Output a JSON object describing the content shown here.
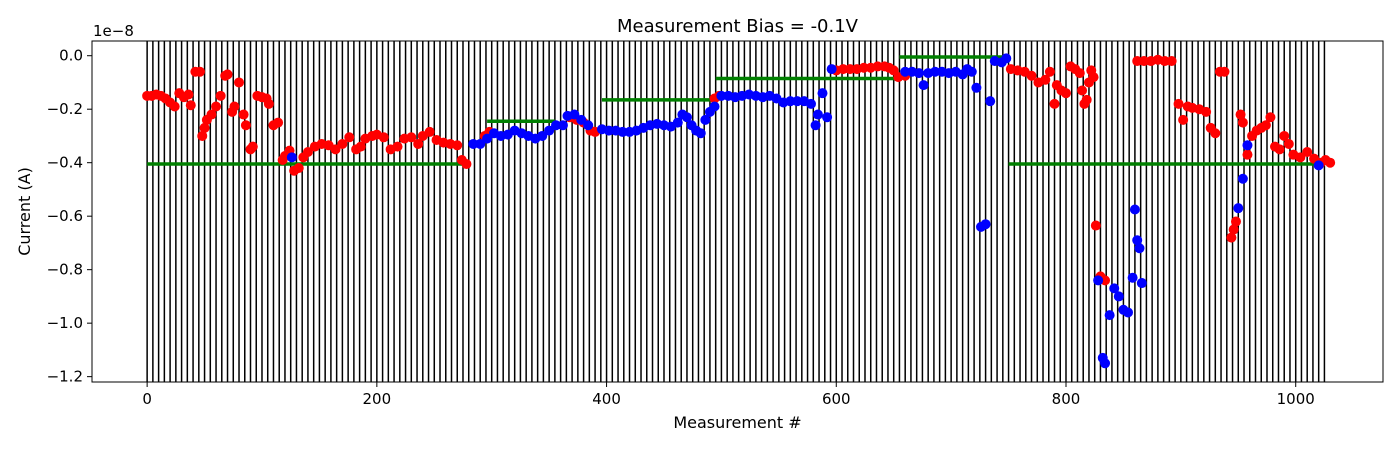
{
  "chart_data": {
    "type": "scatter",
    "title": "Measurement Bias = -0.1V",
    "xlabel": "Measurement #",
    "ylabel": "Current (A)",
    "y_offset_text": "1e−8",
    "xlim": [
      -48,
      1076
    ],
    "ylim": [
      -12.2,
      0.55
    ],
    "x_ticks": [
      0,
      200,
      400,
      600,
      800,
      1000
    ],
    "y_ticks": [
      0.0,
      -2.0,
      -4.0,
      -6.0,
      -8.0,
      -10.0,
      -12.0
    ],
    "x_tick_labels": [
      "0",
      "200",
      "400",
      "600",
      "800",
      "1000"
    ],
    "y_tick_labels": [
      "0.0",
      "−0.2",
      "−0.4",
      "−0.6",
      "−0.8",
      "−1.0",
      "−1.2"
    ],
    "vertical_lines": {
      "start": 0,
      "end": 1025,
      "step": 5,
      "color": "#000000"
    },
    "grid": false,
    "colors": {
      "red": "#ff0000",
      "blue": "#0000ff",
      "green": "#008000",
      "lines": "#000000"
    },
    "reference_segments": [
      {
        "x": [
          0,
          280
        ],
        "y": -4.05
      },
      {
        "x": [
          296,
          355
        ],
        "y": -2.45
      },
      {
        "x": [
          396,
          495
        ],
        "y": -1.65
      },
      {
        "x": [
          495,
          655
        ],
        "y": -0.85
      },
      {
        "x": [
          655,
          750
        ],
        "y": -0.05
      },
      {
        "x": [
          750,
          1025
        ],
        "y": -4.05
      }
    ],
    "series": [
      {
        "color": "red",
        "points": [
          [
            0,
            -1.5
          ],
          [
            4,
            -1.5
          ],
          [
            8,
            -1.45
          ],
          [
            12,
            -1.5
          ],
          [
            16,
            -1.6
          ],
          [
            20,
            -1.75
          ],
          [
            24,
            -1.9
          ],
          [
            28,
            -1.4
          ],
          [
            32,
            -1.55
          ],
          [
            36,
            -1.45
          ],
          [
            38,
            -1.85
          ],
          [
            42,
            -0.6
          ],
          [
            46,
            -0.6
          ],
          [
            48,
            -3.0
          ],
          [
            50,
            -2.7
          ],
          [
            52,
            -2.4
          ],
          [
            56,
            -2.2
          ],
          [
            60,
            -1.9
          ],
          [
            64,
            -1.5
          ],
          [
            68,
            -0.75
          ],
          [
            70,
            -0.7
          ],
          [
            74,
            -2.1
          ],
          [
            76,
            -1.9
          ],
          [
            80,
            -1.0
          ],
          [
            84,
            -2.2
          ],
          [
            86,
            -2.6
          ],
          [
            90,
            -3.5
          ],
          [
            92,
            -3.4
          ],
          [
            96,
            -1.5
          ],
          [
            100,
            -1.55
          ],
          [
            104,
            -1.6
          ],
          [
            106,
            -1.8
          ],
          [
            110,
            -2.6
          ],
          [
            114,
            -2.5
          ],
          [
            118,
            -3.9
          ],
          [
            120,
            -3.75
          ],
          [
            124,
            -3.55
          ],
          [
            128,
            -4.3
          ],
          [
            132,
            -4.2
          ],
          [
            136,
            -3.8
          ],
          [
            140,
            -3.6
          ],
          [
            146,
            -3.4
          ],
          [
            152,
            -3.3
          ],
          [
            158,
            -3.35
          ],
          [
            164,
            -3.5
          ],
          [
            170,
            -3.3
          ],
          [
            176,
            -3.05
          ],
          [
            182,
            -3.5
          ],
          [
            186,
            -3.4
          ],
          [
            190,
            -3.1
          ],
          [
            196,
            -3.0
          ],
          [
            200,
            -2.95
          ],
          [
            206,
            -3.05
          ],
          [
            212,
            -3.5
          ],
          [
            218,
            -3.4
          ],
          [
            224,
            -3.1
          ],
          [
            230,
            -3.05
          ],
          [
            236,
            -3.3
          ],
          [
            240,
            -3.0
          ],
          [
            246,
            -2.85
          ],
          [
            252,
            -3.15
          ],
          [
            258,
            -3.25
          ],
          [
            264,
            -3.3
          ],
          [
            270,
            -3.35
          ],
          [
            274,
            -3.9
          ],
          [
            278,
            -4.05
          ],
          [
            294,
            -3.0
          ],
          [
            298,
            -2.85
          ],
          [
            368,
            -2.3
          ],
          [
            374,
            -2.4
          ],
          [
            380,
            -2.5
          ],
          [
            386,
            -2.8
          ],
          [
            390,
            -2.85
          ],
          [
            494,
            -1.6
          ],
          [
            498,
            -1.5
          ],
          [
            600,
            -0.55
          ],
          [
            606,
            -0.5
          ],
          [
            612,
            -0.5
          ],
          [
            618,
            -0.5
          ],
          [
            624,
            -0.45
          ],
          [
            630,
            -0.45
          ],
          [
            636,
            -0.4
          ],
          [
            642,
            -0.4
          ],
          [
            646,
            -0.45
          ],
          [
            650,
            -0.55
          ],
          [
            654,
            -0.8
          ],
          [
            660,
            -0.75
          ],
          [
            752,
            -0.5
          ],
          [
            758,
            -0.55
          ],
          [
            764,
            -0.6
          ],
          [
            770,
            -0.75
          ],
          [
            776,
            -1.0
          ],
          [
            782,
            -0.9
          ],
          [
            786,
            -0.6
          ],
          [
            790,
            -1.8
          ],
          [
            792,
            -1.1
          ],
          [
            796,
            -1.3
          ],
          [
            800,
            -1.4
          ],
          [
            804,
            -0.4
          ],
          [
            808,
            -0.5
          ],
          [
            812,
            -0.65
          ],
          [
            814,
            -1.3
          ],
          [
            816,
            -1.8
          ],
          [
            818,
            -1.65
          ],
          [
            820,
            -1.0
          ],
          [
            822,
            -0.55
          ],
          [
            824,
            -0.8
          ],
          [
            826,
            -6.35
          ],
          [
            830,
            -8.25
          ],
          [
            834,
            -8.4
          ],
          [
            862,
            -0.2
          ],
          [
            868,
            -0.2
          ],
          [
            874,
            -0.2
          ],
          [
            880,
            -0.15
          ],
          [
            886,
            -0.2
          ],
          [
            892,
            -0.2
          ],
          [
            898,
            -1.8
          ],
          [
            902,
            -2.4
          ],
          [
            906,
            -1.9
          ],
          [
            910,
            -1.95
          ],
          [
            916,
            -2.0
          ],
          [
            922,
            -2.1
          ],
          [
            926,
            -2.7
          ],
          [
            930,
            -2.9
          ],
          [
            934,
            -0.6
          ],
          [
            938,
            -0.6
          ],
          [
            944,
            -6.8
          ],
          [
            946,
            -6.5
          ],
          [
            948,
            -6.2
          ],
          [
            952,
            -2.2
          ],
          [
            954,
            -2.5
          ],
          [
            958,
            -3.7
          ],
          [
            962,
            -3.0
          ],
          [
            966,
            -2.8
          ],
          [
            970,
            -2.7
          ],
          [
            974,
            -2.6
          ],
          [
            978,
            -2.3
          ],
          [
            982,
            -3.4
          ],
          [
            986,
            -3.5
          ],
          [
            990,
            -3.0
          ],
          [
            994,
            -3.3
          ],
          [
            998,
            -3.7
          ],
          [
            1004,
            -3.8
          ],
          [
            1010,
            -3.6
          ],
          [
            1016,
            -3.85
          ],
          [
            1022,
            -4.0
          ],
          [
            1026,
            -3.9
          ],
          [
            1030,
            -4.0
          ]
        ]
      },
      {
        "color": "blue",
        "points": [
          [
            126,
            -3.8
          ],
          [
            284,
            -3.3
          ],
          [
            290,
            -3.3
          ],
          [
            296,
            -3.1
          ],
          [
            302,
            -2.9
          ],
          [
            308,
            -3.0
          ],
          [
            314,
            -2.95
          ],
          [
            320,
            -2.8
          ],
          [
            326,
            -2.9
          ],
          [
            332,
            -3.0
          ],
          [
            338,
            -3.1
          ],
          [
            344,
            -3.0
          ],
          [
            350,
            -2.8
          ],
          [
            356,
            -2.6
          ],
          [
            362,
            -2.6
          ],
          [
            366,
            -2.25
          ],
          [
            372,
            -2.2
          ],
          [
            378,
            -2.4
          ],
          [
            384,
            -2.6
          ],
          [
            396,
            -2.75
          ],
          [
            402,
            -2.8
          ],
          [
            408,
            -2.8
          ],
          [
            414,
            -2.85
          ],
          [
            420,
            -2.85
          ],
          [
            426,
            -2.8
          ],
          [
            432,
            -2.7
          ],
          [
            438,
            -2.6
          ],
          [
            444,
            -2.55
          ],
          [
            450,
            -2.6
          ],
          [
            456,
            -2.65
          ],
          [
            462,
            -2.5
          ],
          [
            466,
            -2.2
          ],
          [
            470,
            -2.3
          ],
          [
            474,
            -2.6
          ],
          [
            478,
            -2.8
          ],
          [
            482,
            -2.9
          ],
          [
            486,
            -2.4
          ],
          [
            490,
            -2.1
          ],
          [
            494,
            -1.9
          ],
          [
            500,
            -1.5
          ],
          [
            506,
            -1.5
          ],
          [
            512,
            -1.55
          ],
          [
            518,
            -1.5
          ],
          [
            524,
            -1.45
          ],
          [
            530,
            -1.5
          ],
          [
            536,
            -1.55
          ],
          [
            542,
            -1.5
          ],
          [
            548,
            -1.6
          ],
          [
            554,
            -1.75
          ],
          [
            560,
            -1.7
          ],
          [
            566,
            -1.7
          ],
          [
            572,
            -1.7
          ],
          [
            578,
            -1.8
          ],
          [
            582,
            -2.6
          ],
          [
            584,
            -2.2
          ],
          [
            588,
            -1.4
          ],
          [
            592,
            -2.3
          ],
          [
            596,
            -0.5
          ],
          [
            660,
            -0.6
          ],
          [
            666,
            -0.6
          ],
          [
            672,
            -0.65
          ],
          [
            676,
            -1.1
          ],
          [
            680,
            -0.65
          ],
          [
            686,
            -0.6
          ],
          [
            692,
            -0.6
          ],
          [
            698,
            -0.65
          ],
          [
            704,
            -0.6
          ],
          [
            710,
            -0.7
          ],
          [
            714,
            -0.5
          ],
          [
            718,
            -0.6
          ],
          [
            722,
            -1.2
          ],
          [
            726,
            -6.4
          ],
          [
            730,
            -6.3
          ],
          [
            734,
            -1.7
          ],
          [
            738,
            -0.2
          ],
          [
            744,
            -0.25
          ],
          [
            748,
            -0.1
          ],
          [
            828,
            -8.4
          ],
          [
            832,
            -11.3
          ],
          [
            834,
            -11.5
          ],
          [
            838,
            -9.7
          ],
          [
            842,
            -8.7
          ],
          [
            846,
            -9.0
          ],
          [
            850,
            -9.5
          ],
          [
            854,
            -9.6
          ],
          [
            858,
            -8.3
          ],
          [
            860,
            -5.75
          ],
          [
            862,
            -6.9
          ],
          [
            864,
            -7.2
          ],
          [
            866,
            -8.5
          ],
          [
            950,
            -5.7
          ],
          [
            954,
            -4.6
          ],
          [
            958,
            -3.35
          ],
          [
            1020,
            -4.1
          ]
        ]
      }
    ]
  }
}
